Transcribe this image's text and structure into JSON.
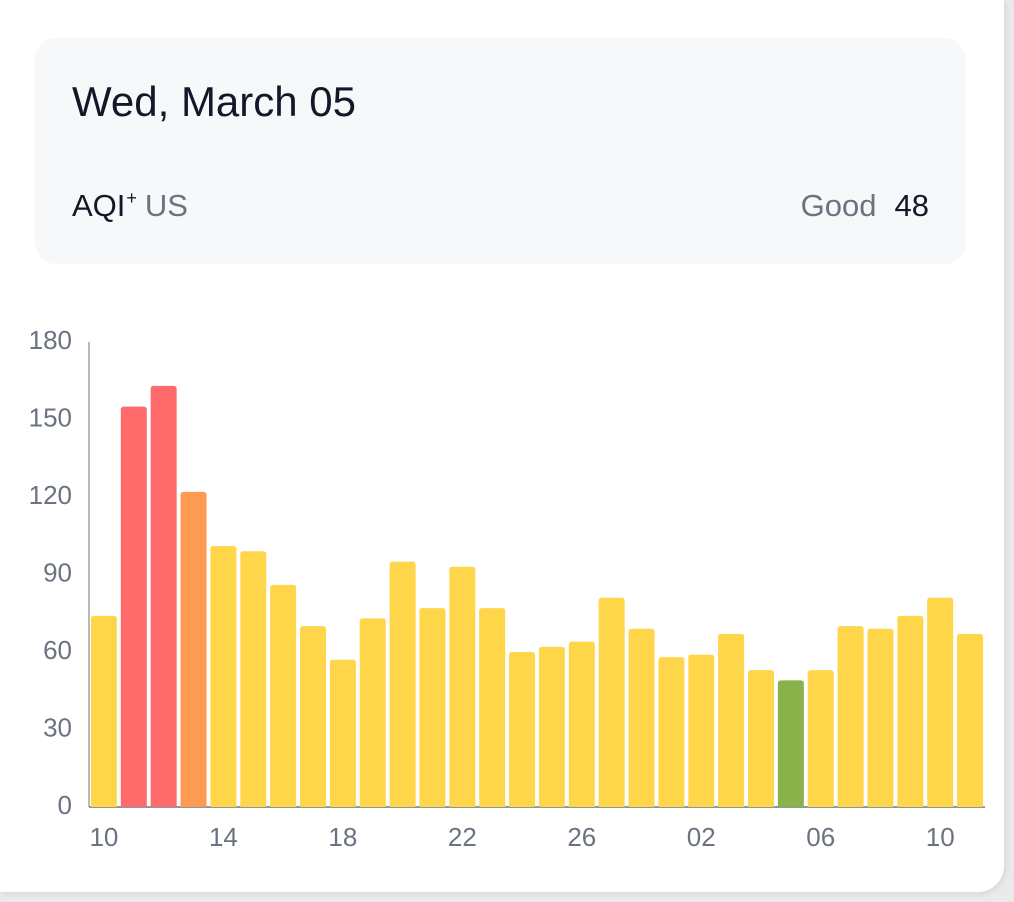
{
  "header": {
    "date": "Wed, March 05",
    "metric": "AQI",
    "metric_sup": "+",
    "unit": "US",
    "status": "Good",
    "value": 48
  },
  "chart_data": {
    "type": "bar",
    "categories": [
      "10",
      null,
      null,
      null,
      "14",
      null,
      null,
      null,
      "18",
      null,
      null,
      null,
      "22",
      null,
      null,
      null,
      "26",
      null,
      null,
      null,
      "02",
      null,
      null,
      null,
      "06",
      null,
      null,
      null,
      "10",
      null
    ],
    "values": [
      74,
      155,
      163,
      122,
      101,
      99,
      86,
      70,
      57,
      73,
      95,
      77,
      93,
      77,
      60,
      62,
      64,
      81,
      69,
      58,
      59,
      67,
      53,
      49,
      53,
      70,
      69,
      74,
      81,
      67
    ],
    "colors": [
      "#ffd54a",
      "#ff6b6b",
      "#ff6b6b",
      "#ff9a52",
      "#ffd54a",
      "#ffd54a",
      "#ffd54a",
      "#ffd54a",
      "#ffd54a",
      "#ffd54a",
      "#ffd54a",
      "#ffd54a",
      "#ffd54a",
      "#ffd54a",
      "#ffd54a",
      "#ffd54a",
      "#ffd54a",
      "#ffd54a",
      "#ffd54a",
      "#ffd54a",
      "#ffd54a",
      "#ffd54a",
      "#ffd54a",
      "#8ab24a",
      "#ffd54a",
      "#ffd54a",
      "#ffd54a",
      "#ffd54a",
      "#ffd54a",
      "#ffd54a"
    ],
    "ylim": [
      0,
      180
    ],
    "yticks": [
      0,
      30,
      60,
      90,
      120,
      150,
      180
    ],
    "grid": false
  }
}
